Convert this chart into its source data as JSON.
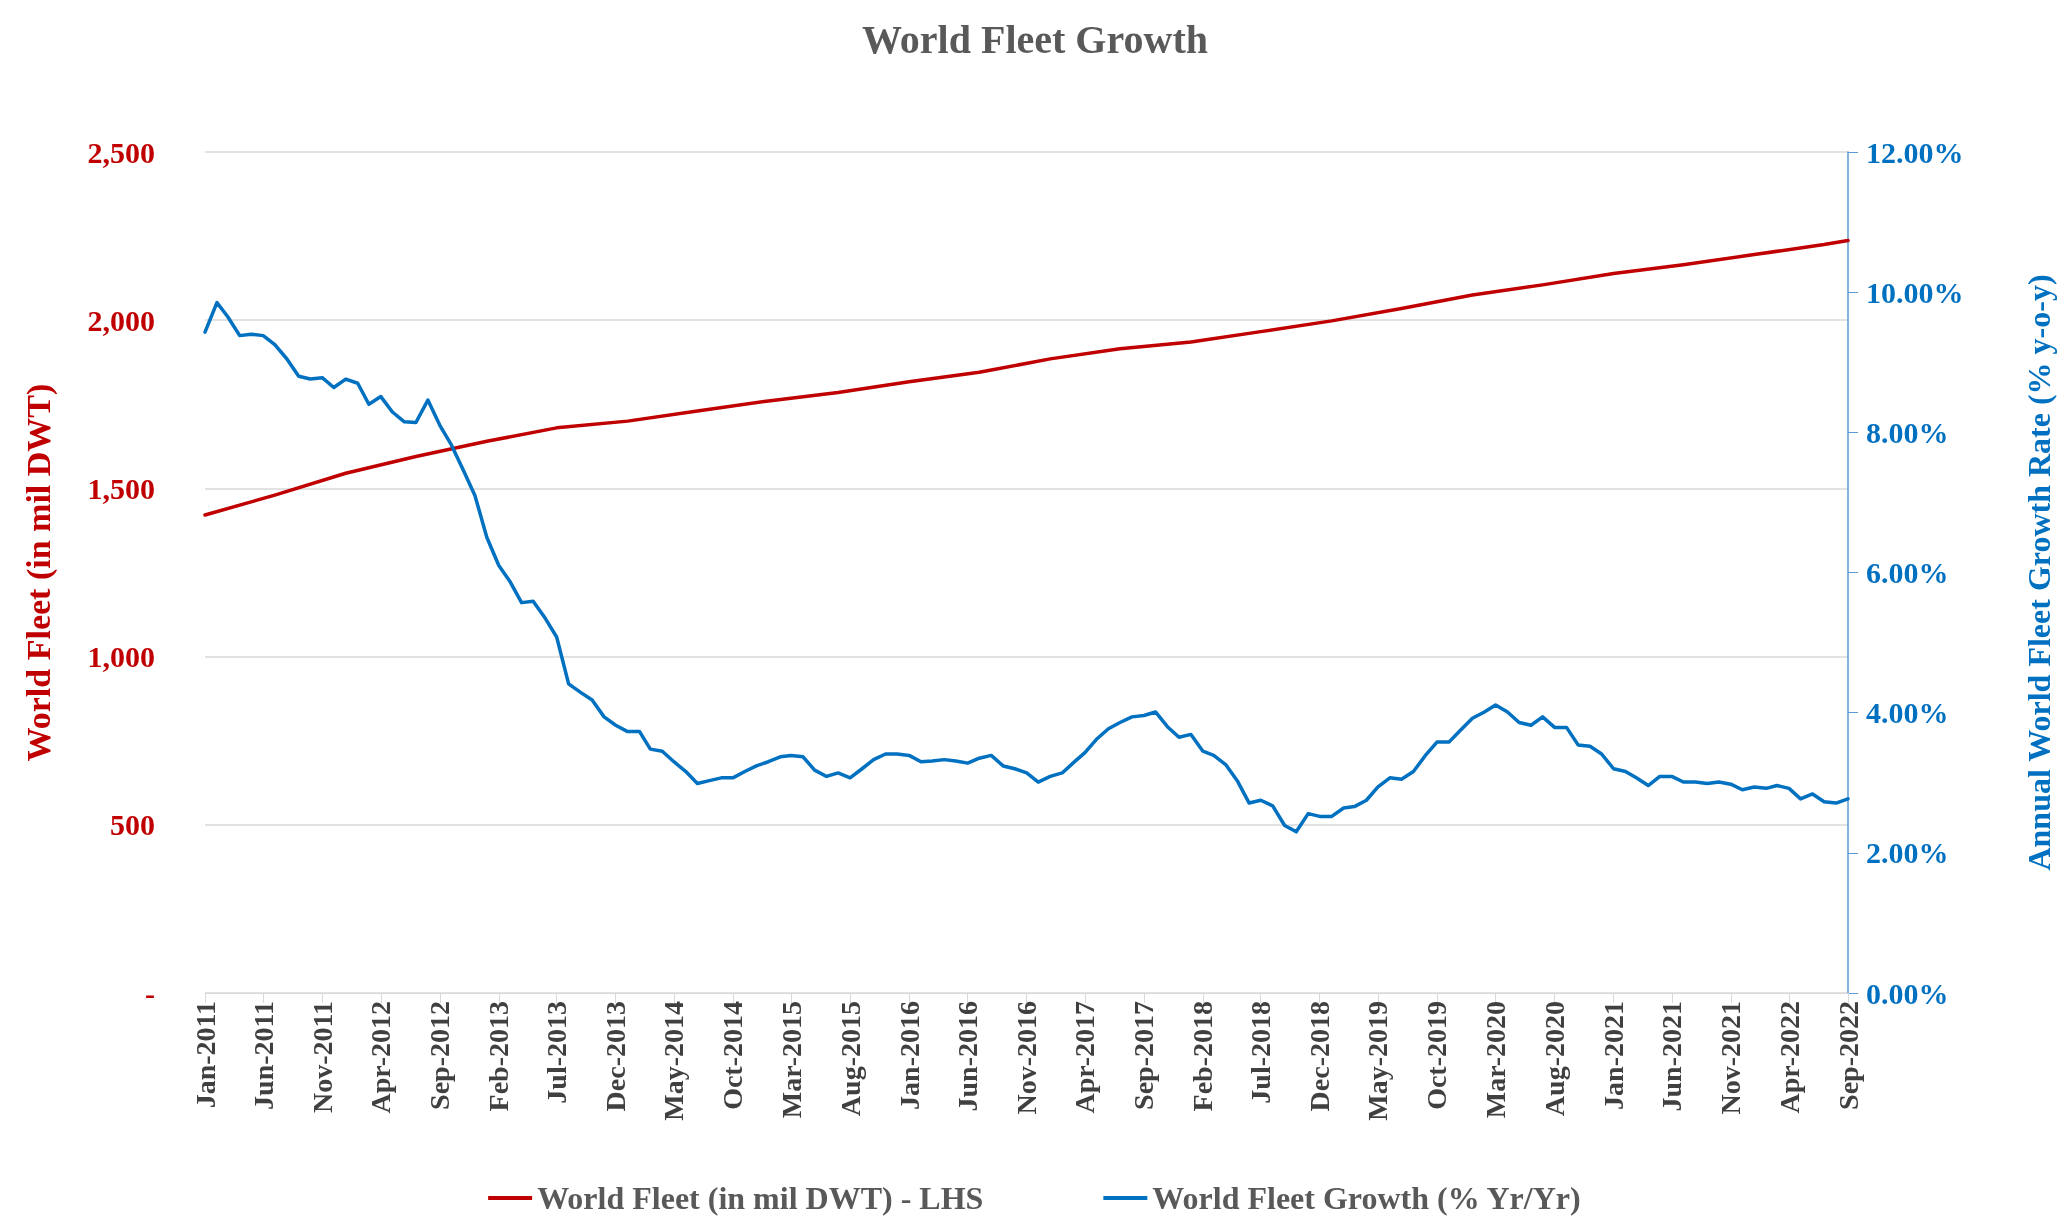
{
  "chart_data": {
    "type": "line",
    "title": "World Fleet Growth",
    "ylabel": "World Fleet (in mil DWT)",
    "y2label": "Annual World Fleet Growth Rate (% y-o-y)",
    "x": [
      "2011-01",
      "2011-02",
      "2011-03",
      "2011-04",
      "2011-05",
      "2011-06",
      "2011-07",
      "2011-08",
      "2011-09",
      "2011-10",
      "2011-11",
      "2011-12",
      "2012-01",
      "2012-02",
      "2012-03",
      "2012-04",
      "2012-05",
      "2012-06",
      "2012-07",
      "2012-08",
      "2012-09",
      "2012-10",
      "2012-11",
      "2012-12",
      "2013-01",
      "2013-02",
      "2013-03",
      "2013-04",
      "2013-05",
      "2013-06",
      "2013-07",
      "2013-08",
      "2013-09",
      "2013-10",
      "2013-11",
      "2013-12",
      "2014-01",
      "2014-02",
      "2014-03",
      "2014-04",
      "2014-05",
      "2014-06",
      "2014-07",
      "2014-08",
      "2014-09",
      "2014-10",
      "2014-11",
      "2014-12",
      "2015-01",
      "2015-02",
      "2015-03",
      "2015-04",
      "2015-05",
      "2015-06",
      "2015-07",
      "2015-08",
      "2015-09",
      "2015-10",
      "2015-11",
      "2015-12",
      "2016-01",
      "2016-02",
      "2016-03",
      "2016-04",
      "2016-05",
      "2016-06",
      "2016-07",
      "2016-08",
      "2016-09",
      "2016-10",
      "2016-11",
      "2016-12",
      "2017-01",
      "2017-02",
      "2017-03",
      "2017-04",
      "2017-05",
      "2017-06",
      "2017-07",
      "2017-08",
      "2017-09",
      "2017-10",
      "2017-11",
      "2017-12",
      "2018-01",
      "2018-02",
      "2018-03",
      "2018-04",
      "2018-05",
      "2018-06",
      "2018-07",
      "2018-08",
      "2018-09",
      "2018-10",
      "2018-11",
      "2018-12",
      "2019-01",
      "2019-02",
      "2019-03",
      "2019-04",
      "2019-05",
      "2019-06",
      "2019-07",
      "2019-08",
      "2019-09",
      "2019-10",
      "2019-11",
      "2019-12",
      "2020-01",
      "2020-02",
      "2020-03",
      "2020-04",
      "2020-05",
      "2020-06",
      "2020-07",
      "2020-08",
      "2020-09",
      "2020-10",
      "2020-11",
      "2020-12",
      "2021-01",
      "2021-02",
      "2021-03",
      "2021-04",
      "2021-05",
      "2021-06",
      "2021-07",
      "2021-08",
      "2021-09",
      "2021-10",
      "2021-11",
      "2021-12",
      "2022-01",
      "2022-02",
      "2022-03",
      "2022-04",
      "2022-05",
      "2022-06",
      "2022-07",
      "2022-08",
      "2022-09"
    ],
    "series": [
      {
        "name": "World Fleet (in mil DWT) - LHS",
        "color": "#c00000",
        "x": [
          "2011-01",
          "2011-07",
          "2012-01",
          "2012-07",
          "2013-01",
          "2013-07",
          "2014-01",
          "2014-07",
          "2015-01",
          "2015-07",
          "2016-01",
          "2016-07",
          "2017-01",
          "2017-07",
          "2018-01",
          "2018-07",
          "2019-01",
          "2019-07",
          "2020-01",
          "2020-07",
          "2021-01",
          "2021-07",
          "2022-01",
          "2022-07",
          "2022-09"
        ],
        "values": [
          1421,
          1480,
          1545,
          1595,
          1640,
          1680,
          1700,
          1730,
          1760,
          1785,
          1817,
          1845,
          1885,
          1915,
          1935,
          1966,
          1998,
          2035,
          2075,
          2105,
          2139,
          2165,
          2195,
          2225,
          2237
        ]
      },
      {
        "name": "World Fleet Growth (% Yr/Yr)",
        "color": "#0070c0",
        "axis": "y2",
        "values": [
          9.43,
          9.85,
          9.65,
          9.38,
          9.4,
          9.38,
          9.25,
          9.05,
          8.8,
          8.76,
          8.78,
          8.64,
          8.76,
          8.7,
          8.4,
          8.51,
          8.29,
          8.15,
          8.14,
          8.46,
          8.1,
          7.82,
          7.46,
          7.1,
          6.5,
          6.1,
          5.88,
          5.57,
          5.59,
          5.35,
          5.08,
          4.41,
          4.29,
          4.18,
          3.94,
          3.82,
          3.73,
          3.73,
          3.48,
          3.45,
          3.3,
          3.16,
          2.99,
          3.03,
          3.07,
          3.07,
          3.16,
          3.24,
          3.3,
          3.37,
          3.39,
          3.37,
          3.18,
          3.09,
          3.14,
          3.07,
          3.2,
          3.33,
          3.41,
          3.41,
          3.39,
          3.3,
          3.31,
          3.33,
          3.31,
          3.28,
          3.35,
          3.39,
          3.24,
          3.2,
          3.14,
          3.01,
          3.09,
          3.14,
          3.28,
          3.43,
          3.62,
          3.77,
          3.86,
          3.94,
          3.96,
          4.01,
          3.8,
          3.65,
          3.69,
          3.45,
          3.39,
          3.26,
          3.03,
          2.71,
          2.75,
          2.67,
          2.39,
          2.3,
          2.56,
          2.52,
          2.52,
          2.64,
          2.66,
          2.75,
          2.94,
          3.07,
          3.05,
          3.16,
          3.39,
          3.58,
          3.58,
          3.75,
          3.92,
          4.01,
          4.11,
          4.01,
          3.86,
          3.82,
          3.94,
          3.79,
          3.79,
          3.54,
          3.52,
          3.41,
          3.2,
          3.16,
          3.07,
          2.96,
          3.09,
          3.09,
          3.01,
          3.01,
          2.99,
          3.01,
          2.98,
          2.9,
          2.94,
          2.92,
          2.96,
          2.92,
          2.77,
          2.84,
          2.73,
          2.71,
          2.77
        ]
      }
    ],
    "xlim": [
      "2011-01",
      "2022-09"
    ],
    "xticks": [
      {
        "value": "2011-01",
        "label": "Jan-2011"
      },
      {
        "value": "2011-06",
        "label": "Jun-2011"
      },
      {
        "value": "2011-11",
        "label": "Nov-2011"
      },
      {
        "value": "2012-04",
        "label": "Apr-2012"
      },
      {
        "value": "2012-09",
        "label": "Sep-2012"
      },
      {
        "value": "2013-02",
        "label": "Feb-2013"
      },
      {
        "value": "2013-07",
        "label": "Jul-2013"
      },
      {
        "value": "2013-12",
        "label": "Dec-2013"
      },
      {
        "value": "2014-05",
        "label": "May-2014"
      },
      {
        "value": "2014-10",
        "label": "Oct-2014"
      },
      {
        "value": "2015-03",
        "label": "Mar-2015"
      },
      {
        "value": "2015-08",
        "label": "Aug-2015"
      },
      {
        "value": "2016-01",
        "label": "Jan-2016"
      },
      {
        "value": "2016-06",
        "label": "Jun-2016"
      },
      {
        "value": "2016-11",
        "label": "Nov-2016"
      },
      {
        "value": "2017-04",
        "label": "Apr-2017"
      },
      {
        "value": "2017-09",
        "label": "Sep-2017"
      },
      {
        "value": "2018-02",
        "label": "Feb-2018"
      },
      {
        "value": "2018-07",
        "label": "Jul-2018"
      },
      {
        "value": "2018-12",
        "label": "Dec-2018"
      },
      {
        "value": "2019-05",
        "label": "May-2019"
      },
      {
        "value": "2019-10",
        "label": "Oct-2019"
      },
      {
        "value": "2020-03",
        "label": "Mar-2020"
      },
      {
        "value": "2020-08",
        "label": "Aug-2020"
      },
      {
        "value": "2021-01",
        "label": "Jan-2021"
      },
      {
        "value": "2021-06",
        "label": "Jun-2021"
      },
      {
        "value": "2021-11",
        "label": "Nov-2021"
      },
      {
        "value": "2022-04",
        "label": "Apr-2022"
      },
      {
        "value": "2022-09",
        "label": "Sep-2022"
      }
    ],
    "ylim": [
      0,
      2500
    ],
    "yticks": [
      {
        "value": 0,
        "label": "-"
      },
      {
        "value": 500,
        "label": "500"
      },
      {
        "value": 1000,
        "label": "1,000"
      },
      {
        "value": 1500,
        "label": "1,500"
      },
      {
        "value": 2000,
        "label": "2,000"
      },
      {
        "value": 2500,
        "label": "2,500"
      }
    ],
    "y2lim": [
      0,
      12
    ],
    "y2ticks": [
      {
        "value": 0,
        "label": "0.00%"
      },
      {
        "value": 2,
        "label": "2.00%"
      },
      {
        "value": 4,
        "label": "4.00%"
      },
      {
        "value": 6,
        "label": "6.00%"
      },
      {
        "value": 8,
        "label": "8.00%"
      },
      {
        "value": 10,
        "label": "10.00%"
      },
      {
        "value": 12,
        "label": "12.00%"
      }
    ],
    "grid": "y",
    "legend": "bottom",
    "marker": "none",
    "line_style": "solid"
  }
}
